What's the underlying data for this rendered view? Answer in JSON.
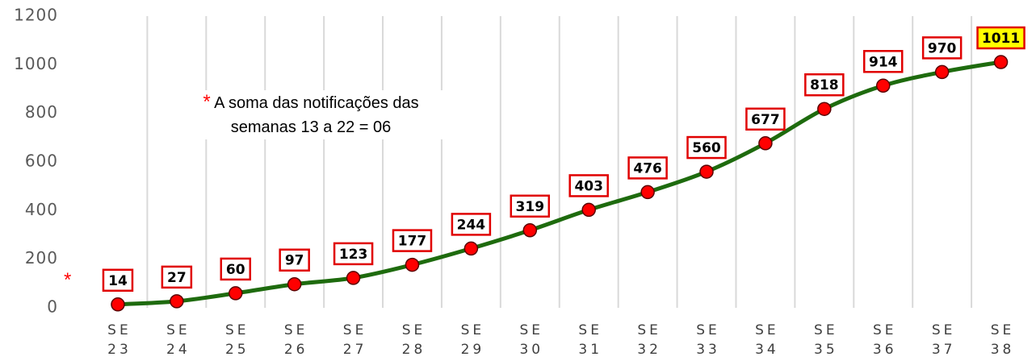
{
  "chart_data": {
    "type": "line",
    "categories": [
      "SE 23",
      "SE 24",
      "SE 25",
      "SE 26",
      "SE 27",
      "SE 28",
      "SE 29",
      "SE 30",
      "SE 31",
      "SE 32",
      "SE 33",
      "SE 34",
      "SE 35",
      "SE 36",
      "SE 37",
      "SE 38"
    ],
    "values": [
      14,
      27,
      60,
      97,
      123,
      177,
      244,
      319,
      403,
      476,
      560,
      677,
      818,
      914,
      970,
      1011
    ],
    "color": "#1e6b0e",
    "marker_color": "#ff0000",
    "value_label_fills": [
      "#ffffff",
      "#ffffff",
      "#ffffff",
      "#ffffff",
      "#ffffff",
      "#ffffff",
      "#ffffff",
      "#ffffff",
      "#ffffff",
      "#ffffff",
      "#ffffff",
      "#ffffff",
      "#ffffff",
      "#ffffff",
      "#ffffff",
      "#ffff00"
    ],
    "ylim": [
      0,
      1200
    ],
    "yticks": [
      0,
      200,
      400,
      600,
      800,
      1000,
      1200
    ],
    "grid": true,
    "annotation_marker": "*",
    "annotation": "A soma das notificações  das semanas 13 a 22 = 06"
  }
}
